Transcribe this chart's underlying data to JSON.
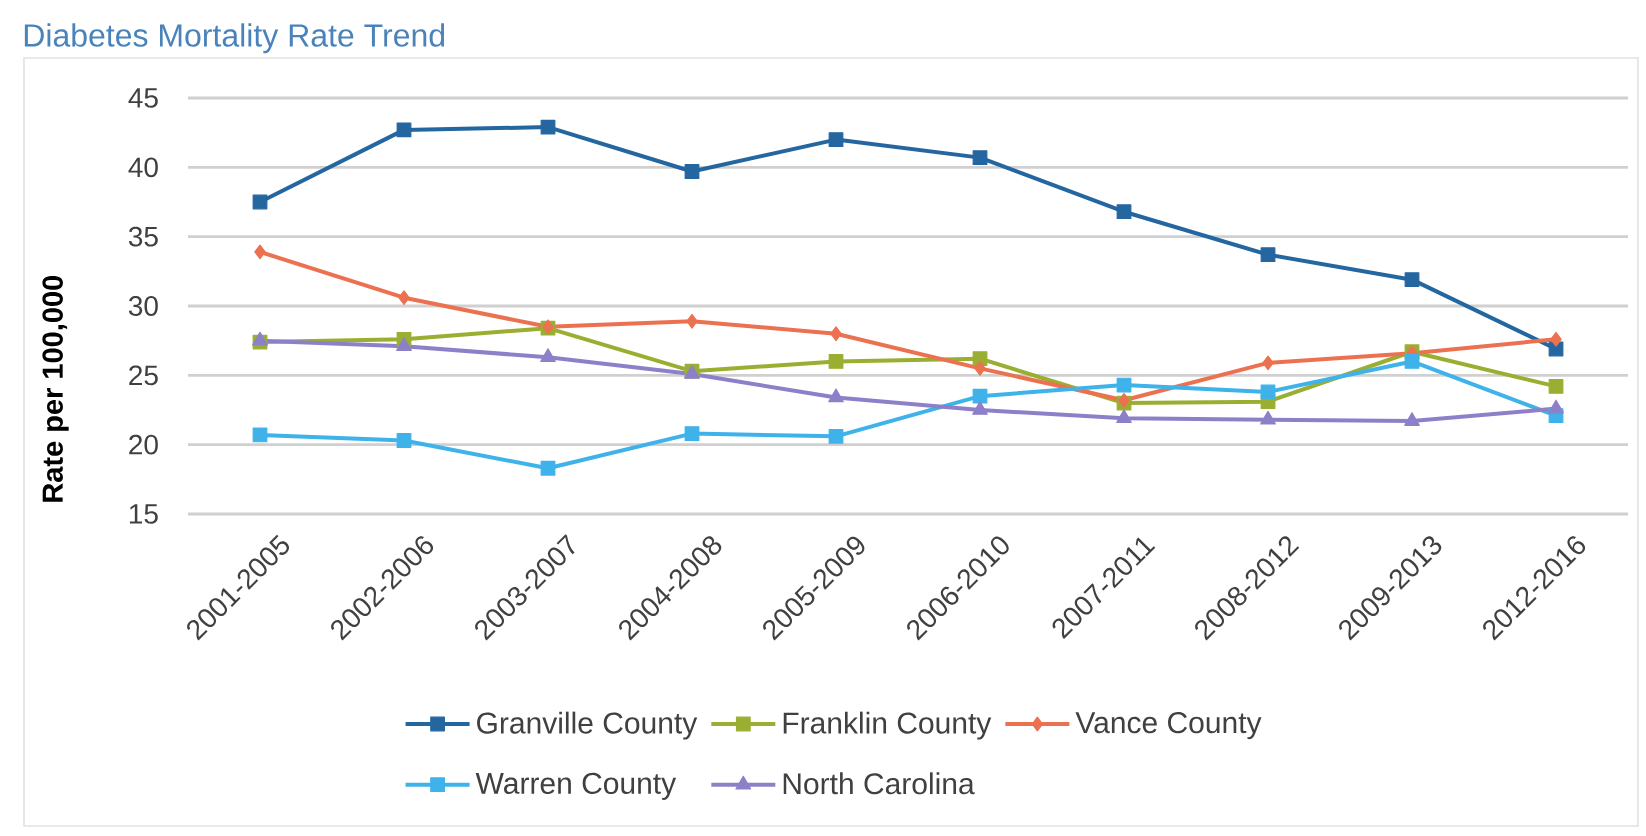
{
  "chart_data": {
    "type": "line",
    "title": "Diabetes Mortality Rate Trend",
    "ylabel": "Rate per 100,000",
    "categories": [
      "2001-2005",
      "2002-2006",
      "2003-2007",
      "2004-2008",
      "2005-2009",
      "2006-2010",
      "2007-2011",
      "2008-2012",
      "2009-2013",
      "2012-2016"
    ],
    "series": [
      {
        "name": "Granville County",
        "color": "#2466a0",
        "marker": "square",
        "values": [
          37.5,
          42.7,
          42.9,
          39.7,
          42.0,
          40.7,
          36.8,
          33.7,
          31.9,
          26.9
        ]
      },
      {
        "name": "Franklin County",
        "color": "#9aaf32",
        "marker": "square",
        "values": [
          27.4,
          27.6,
          28.4,
          25.3,
          26.0,
          26.2,
          23.0,
          23.1,
          26.7,
          24.2
        ]
      },
      {
        "name": "Vance County",
        "color": "#ec7150",
        "marker": "diamond",
        "values": [
          33.9,
          30.6,
          28.5,
          28.9,
          28.0,
          25.5,
          23.2,
          25.9,
          26.6,
          27.6
        ]
      },
      {
        "name": "Warren County",
        "color": "#3fb2ea",
        "marker": "square",
        "values": [
          20.7,
          20.3,
          18.3,
          20.8,
          20.6,
          23.5,
          24.3,
          23.8,
          26.0,
          22.1
        ]
      },
      {
        "name": "North Carolina",
        "color": "#8d80c9",
        "marker": "triangle",
        "values": [
          27.5,
          27.1,
          26.3,
          25.1,
          23.4,
          22.5,
          21.9,
          21.8,
          21.7,
          22.6
        ]
      }
    ],
    "ylim": [
      15,
      45
    ],
    "yticks": [
      15,
      20,
      25,
      30,
      35,
      40,
      45
    ],
    "grid": "y",
    "legend": "bottom",
    "line_style": "solid"
  }
}
